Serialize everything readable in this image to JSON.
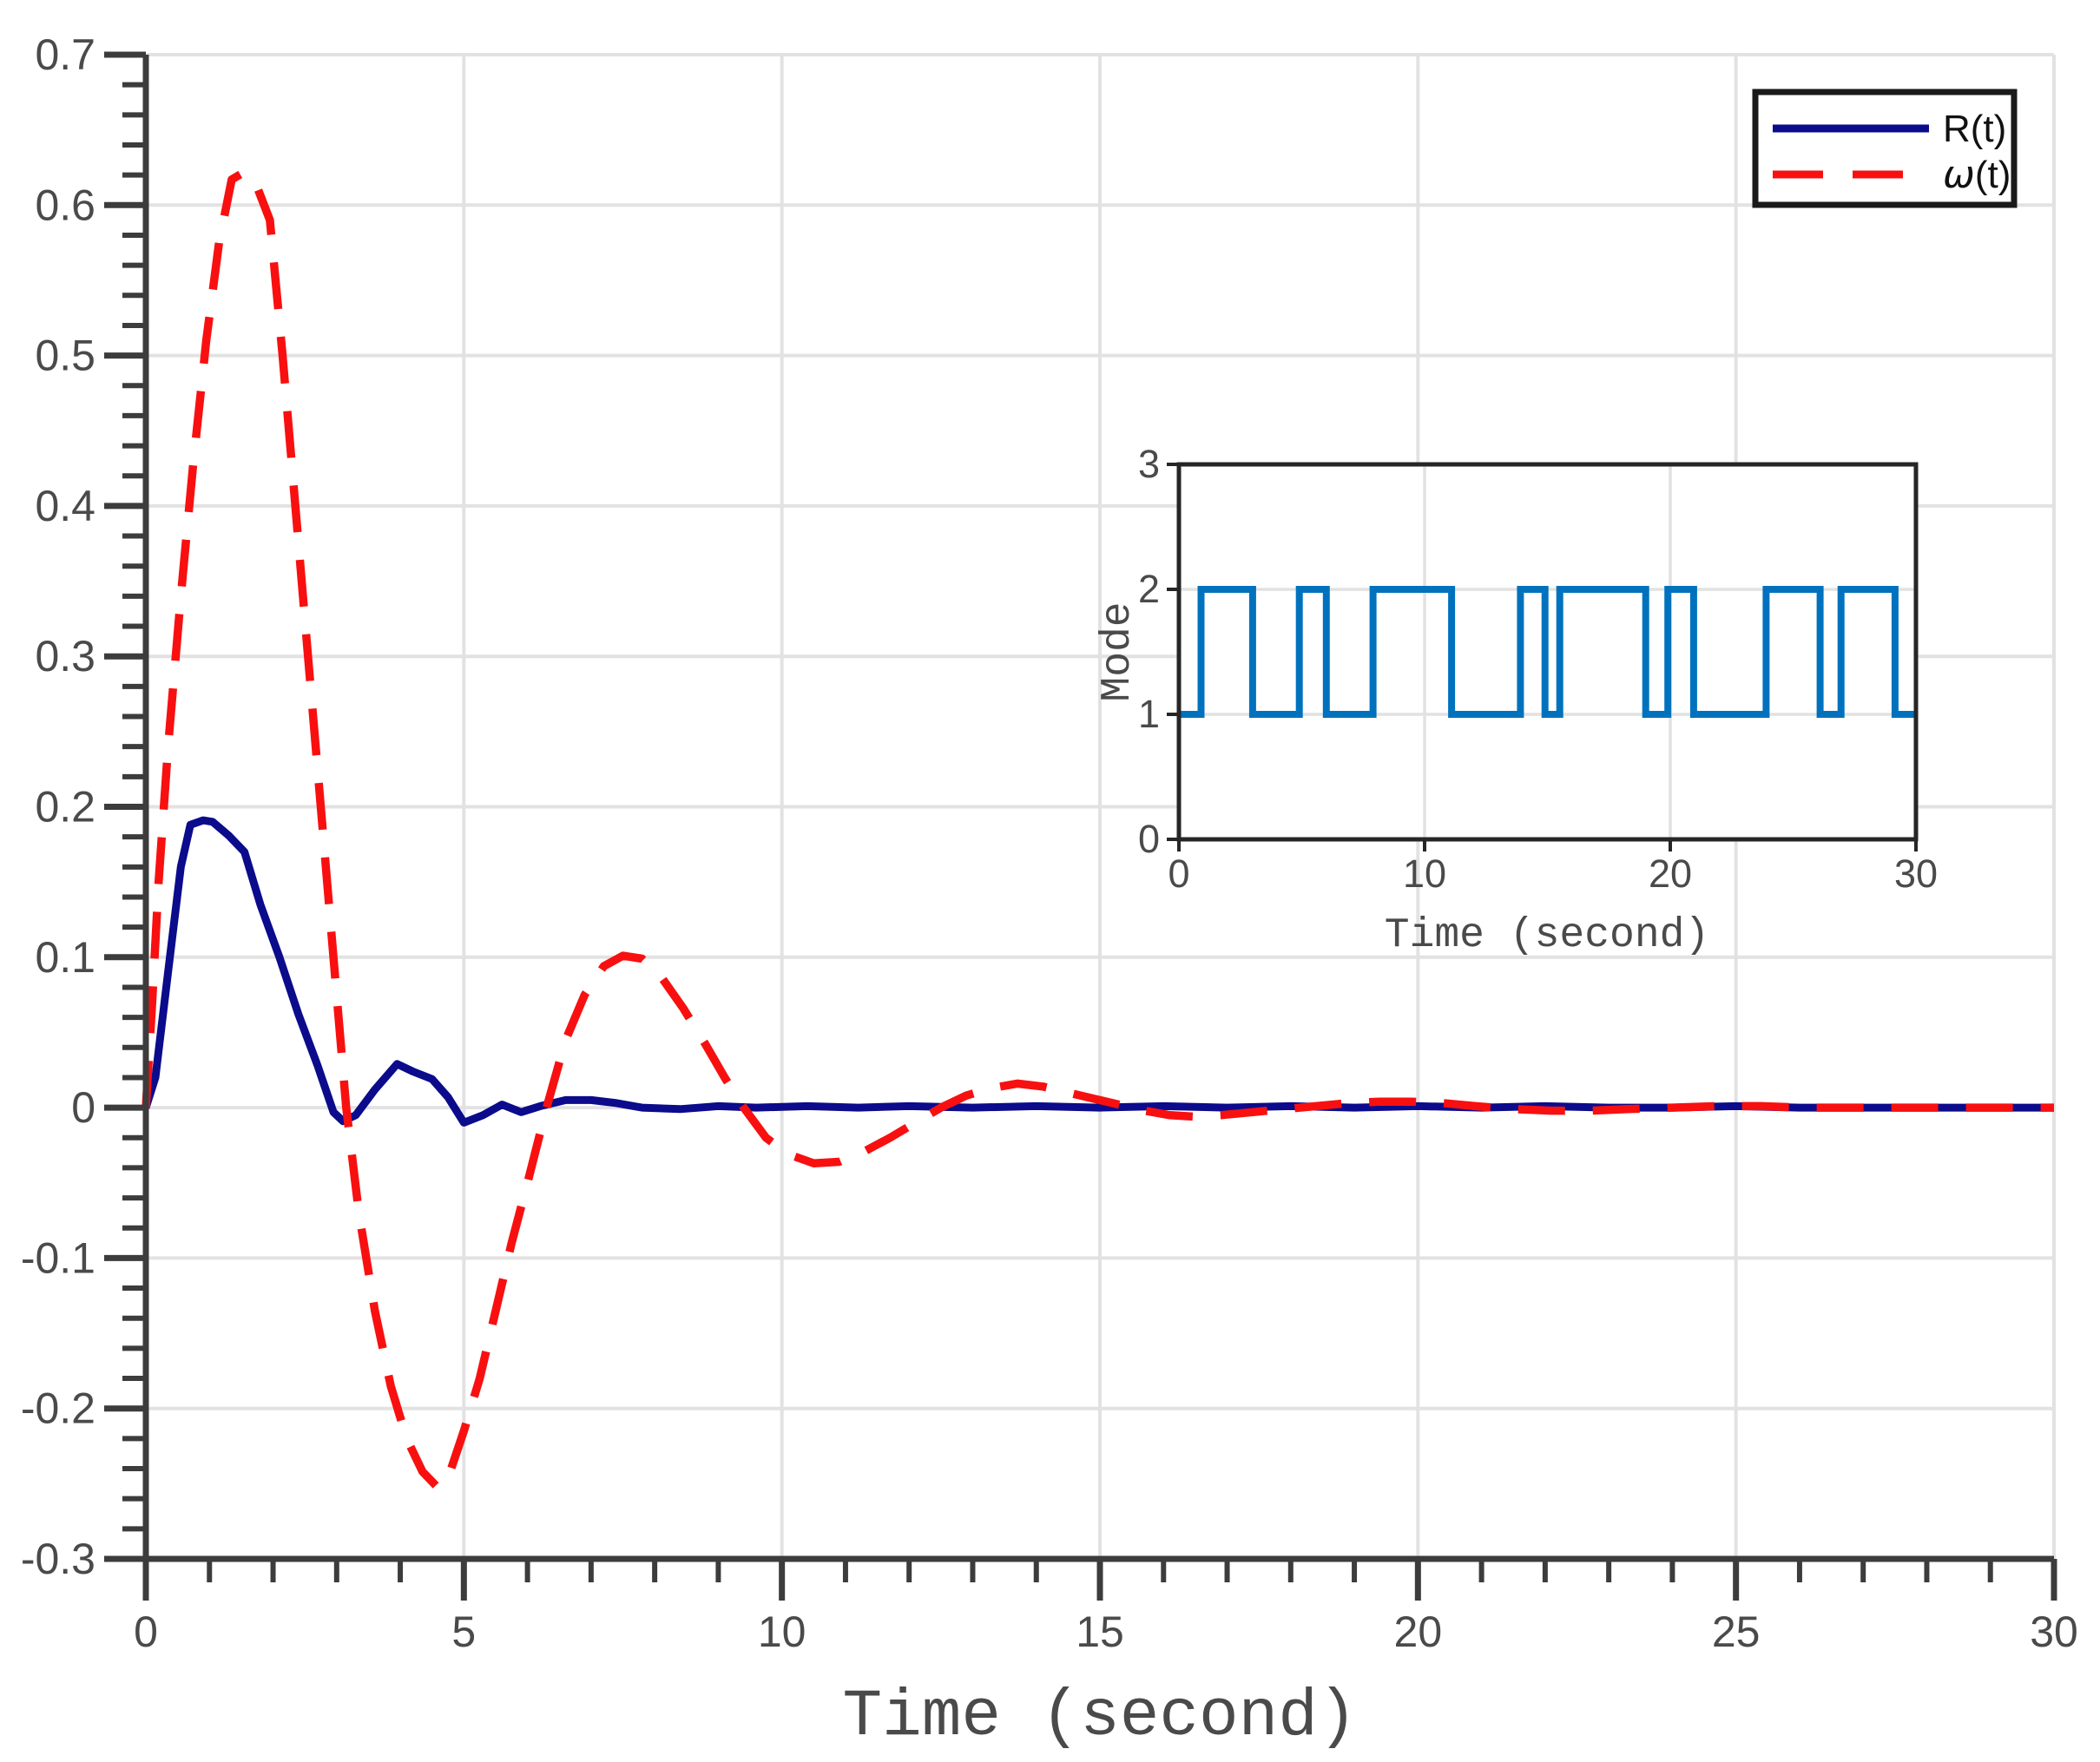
{
  "figure": {
    "background": "#ffffff",
    "grid_color": "#e2e2e2",
    "spine_color": "#3c3c3c",
    "tick_label_color": "#4a4a4a",
    "axis_label_color": "#4a4a4a"
  },
  "chart_data": [
    {
      "id": "main",
      "type": "line",
      "title": "",
      "xlabel": "Time (second)",
      "ylabel": "",
      "xlim": [
        0,
        30
      ],
      "ylim": [
        -0.3,
        0.7
      ],
      "xticks": [
        0,
        5,
        10,
        15,
        20,
        25,
        30
      ],
      "xtick_labels": [
        "0",
        "5",
        "10",
        "15",
        "20",
        "25",
        "30"
      ],
      "yticks": [
        -0.3,
        -0.2,
        -0.1,
        0,
        0.1,
        0.2,
        0.3,
        0.4,
        0.5,
        0.6,
        0.7
      ],
      "ytick_labels": [
        "-0.3",
        "-0.2",
        "-0.1",
        "0",
        "0.1",
        "0.2",
        "0.3",
        "0.4",
        "0.5",
        "0.6",
        "0.7"
      ],
      "x_minor_step": 1,
      "y_minor_step": 0.02,
      "grid": true,
      "legend_position": "top-right",
      "series": [
        {
          "name": "R(t)",
          "color": "#0b0b8c",
          "line_style": "solid",
          "points": [
            [
              0,
              0
            ],
            [
              0.15,
              0.02
            ],
            [
              0.35,
              0.09
            ],
            [
              0.55,
              0.16
            ],
            [
              0.7,
              0.188
            ],
            [
              0.9,
              0.191
            ],
            [
              1.05,
              0.19
            ],
            [
              1.3,
              0.181
            ],
            [
              1.55,
              0.17
            ],
            [
              1.8,
              0.135
            ],
            [
              2.1,
              0.1
            ],
            [
              2.4,
              0.062
            ],
            [
              2.7,
              0.028
            ],
            [
              2.95,
              -0.003
            ],
            [
              3.1,
              -0.009
            ],
            [
              3.3,
              -0.005
            ],
            [
              3.6,
              0.012
            ],
            [
              3.95,
              0.029
            ],
            [
              4.2,
              0.024
            ],
            [
              4.5,
              0.019
            ],
            [
              4.75,
              0.007
            ],
            [
              5.0,
              -0.01
            ],
            [
              5.3,
              -0.005
            ],
            [
              5.6,
              0.002
            ],
            [
              5.9,
              -0.003
            ],
            [
              6.2,
              0.001
            ],
            [
              6.6,
              0.005
            ],
            [
              7.0,
              0.005
            ],
            [
              7.4,
              0.003
            ],
            [
              7.8,
              0
            ],
            [
              8.4,
              -0.001
            ],
            [
              9,
              0.001
            ],
            [
              9.6,
              0
            ],
            [
              10.4,
              0.001
            ],
            [
              11.2,
              0
            ],
            [
              12,
              0.001
            ],
            [
              13,
              0
            ],
            [
              14,
              0.001
            ],
            [
              15,
              0
            ],
            [
              16,
              0.001
            ],
            [
              17,
              0
            ],
            [
              18,
              0.001
            ],
            [
              19,
              0
            ],
            [
              20,
              0.001
            ],
            [
              21,
              0
            ],
            [
              22,
              0.001
            ],
            [
              23,
              0
            ],
            [
              24,
              0
            ],
            [
              25,
              0.001
            ],
            [
              26,
              0
            ],
            [
              27,
              0
            ],
            [
              28,
              0
            ],
            [
              29,
              0
            ],
            [
              30,
              0
            ]
          ]
        },
        {
          "name": "ω(t)",
          "color": "#f81010",
          "line_style": "dashed",
          "points": [
            [
              0,
              0
            ],
            [
              0.1,
              0.07
            ],
            [
              0.2,
              0.15
            ],
            [
              0.35,
              0.24
            ],
            [
              0.55,
              0.34
            ],
            [
              0.75,
              0.43
            ],
            [
              0.95,
              0.51
            ],
            [
              1.15,
              0.575
            ],
            [
              1.35,
              0.617
            ],
            [
              1.55,
              0.622
            ],
            [
              1.75,
              0.612
            ],
            [
              1.95,
              0.59
            ],
            [
              2.15,
              0.5
            ],
            [
              2.35,
              0.4
            ],
            [
              2.55,
              0.3
            ],
            [
              2.75,
              0.2
            ],
            [
              2.95,
              0.1
            ],
            [
              3.15,
              0
            ],
            [
              3.35,
              -0.07
            ],
            [
              3.6,
              -0.135
            ],
            [
              3.85,
              -0.185
            ],
            [
              4.1,
              -0.22
            ],
            [
              4.35,
              -0.242
            ],
            [
              4.6,
              -0.253
            ],
            [
              4.8,
              -0.24
            ],
            [
              5.0,
              -0.215
            ],
            [
              5.25,
              -0.18
            ],
            [
              5.5,
              -0.135
            ],
            [
              5.75,
              -0.09
            ],
            [
              6.0,
              -0.05
            ],
            [
              6.3,
              0
            ],
            [
              6.6,
              0.045
            ],
            [
              6.9,
              0.075
            ],
            [
              7.2,
              0.094
            ],
            [
              7.5,
              0.101
            ],
            [
              7.8,
              0.099
            ],
            [
              8.1,
              0.087
            ],
            [
              8.45,
              0.066
            ],
            [
              8.8,
              0.042
            ],
            [
              9.1,
              0.02
            ],
            [
              9.4,
              0
            ],
            [
              9.75,
              -0.02
            ],
            [
              10.1,
              -0.031
            ],
            [
              10.5,
              -0.037
            ],
            [
              10.9,
              -0.036
            ],
            [
              11.3,
              -0.029
            ],
            [
              11.7,
              -0.02
            ],
            [
              12.1,
              -0.01
            ],
            [
              12.5,
              0
            ],
            [
              12.9,
              0.008
            ],
            [
              13.3,
              0.013
            ],
            [
              13.7,
              0.016
            ],
            [
              14.1,
              0.014
            ],
            [
              14.5,
              0.01
            ],
            [
              14.9,
              0.006
            ],
            [
              15.3,
              0.002
            ],
            [
              15.7,
              -0.002
            ],
            [
              16.1,
              -0.005
            ],
            [
              16.5,
              -0.006
            ],
            [
              16.9,
              -0.005
            ],
            [
              17.4,
              -0.003
            ],
            [
              17.9,
              -0.001
            ],
            [
              18.4,
              0.001
            ],
            [
              18.9,
              0.003
            ],
            [
              19.4,
              0.004
            ],
            [
              19.9,
              0.004
            ],
            [
              20.4,
              0.003
            ],
            [
              20.9,
              0.001
            ],
            [
              21.5,
              -0.001
            ],
            [
              22.1,
              -0.002
            ],
            [
              22.7,
              -0.002
            ],
            [
              23.3,
              -0.001
            ],
            [
              24,
              0
            ],
            [
              24.7,
              0.001
            ],
            [
              25.4,
              0.001
            ],
            [
              26.1,
              0
            ],
            [
              27,
              0
            ],
            [
              28,
              0
            ],
            [
              29,
              0
            ],
            [
              30,
              0
            ]
          ]
        }
      ]
    },
    {
      "id": "inset",
      "type": "step",
      "title": "",
      "xlabel": "Time (second)",
      "ylabel": "Mode",
      "xlim": [
        0,
        30
      ],
      "ylim": [
        0,
        3
      ],
      "xticks": [
        0,
        10,
        20,
        30
      ],
      "xtick_labels": [
        "0",
        "10",
        "20",
        "30"
      ],
      "yticks": [
        0,
        1,
        2,
        3
      ],
      "ytick_labels": [
        "0",
        "1",
        "2",
        "3"
      ],
      "grid": true,
      "series": [
        {
          "name": "Mode",
          "color": "#0072bd",
          "start_level": 1,
          "high_level": 2,
          "transitions": [
            0.9,
            3.0,
            4.9,
            6.0,
            7.9,
            11.1,
            13.9,
            14.9,
            15.5,
            19.0,
            19.9,
            20.95,
            23.9,
            26.1,
            26.95,
            29.15
          ],
          "end_time": 30
        }
      ]
    }
  ],
  "legend": {
    "border_color": "#1a1a1a",
    "background": "#ffffff",
    "entries": [
      {
        "symbol": "R",
        "suffix": "(t)",
        "color": "#0b0b8c",
        "style": "solid"
      },
      {
        "symbol": "ω",
        "suffix": "(t)",
        "color": "#f81010",
        "style": "dashed"
      }
    ]
  }
}
